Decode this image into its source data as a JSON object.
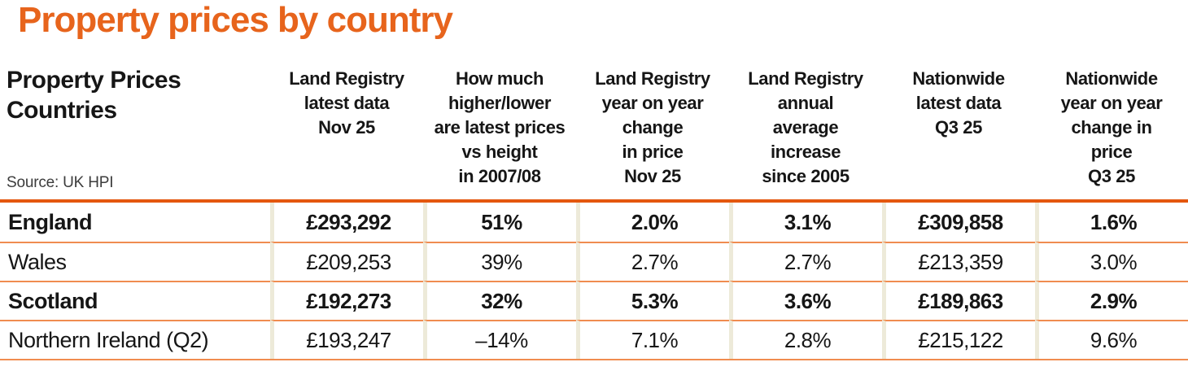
{
  "title": "Property prices by country",
  "chart_data": {
    "type": "table",
    "title": "Property prices by country",
    "corner_header": "Property Prices\nCountries",
    "source": "Source: UK HPI",
    "column_headers": [
      "Land Registry\nlatest data\nNov 25",
      "How much\nhigher/lower\nare latest prices\nvs height\nin 2007/08",
      "Land Registry\nyear on year\nchange\nin price\nNov 25",
      "Land Registry\nannual\naverage\nincrease\nsince 2005",
      "Nationwide\nlatest data\nQ3 25",
      "Nationwide\nyear on year\nchange in\nprice\nQ3 25"
    ],
    "rows": [
      {
        "label": "England",
        "values": [
          "£293,292",
          "51%",
          "2.0%",
          "3.1%",
          "£309,858",
          "1.6%"
        ]
      },
      {
        "label": "Wales",
        "values": [
          "£209,253",
          "39%",
          "2.7%",
          "2.7%",
          "£213,359",
          "3.0%"
        ]
      },
      {
        "label": "Scotland",
        "values": [
          "£192,273",
          "32%",
          "5.3%",
          "3.6%",
          "£189,863",
          "2.9%"
        ]
      },
      {
        "label": "Northern Ireland (Q2)",
        "values": [
          "£193,247",
          "–14%",
          "7.1%",
          "2.8%",
          "£215,122",
          "9.6%"
        ]
      }
    ]
  },
  "colors": {
    "title_orange": "#e7641c",
    "header_rule_orange": "#e4570e",
    "row_line_orange": "#f08c50",
    "column_divider_cream": "#edead9",
    "text_black": "#161616",
    "source_gray": "#3c3c3c"
  }
}
